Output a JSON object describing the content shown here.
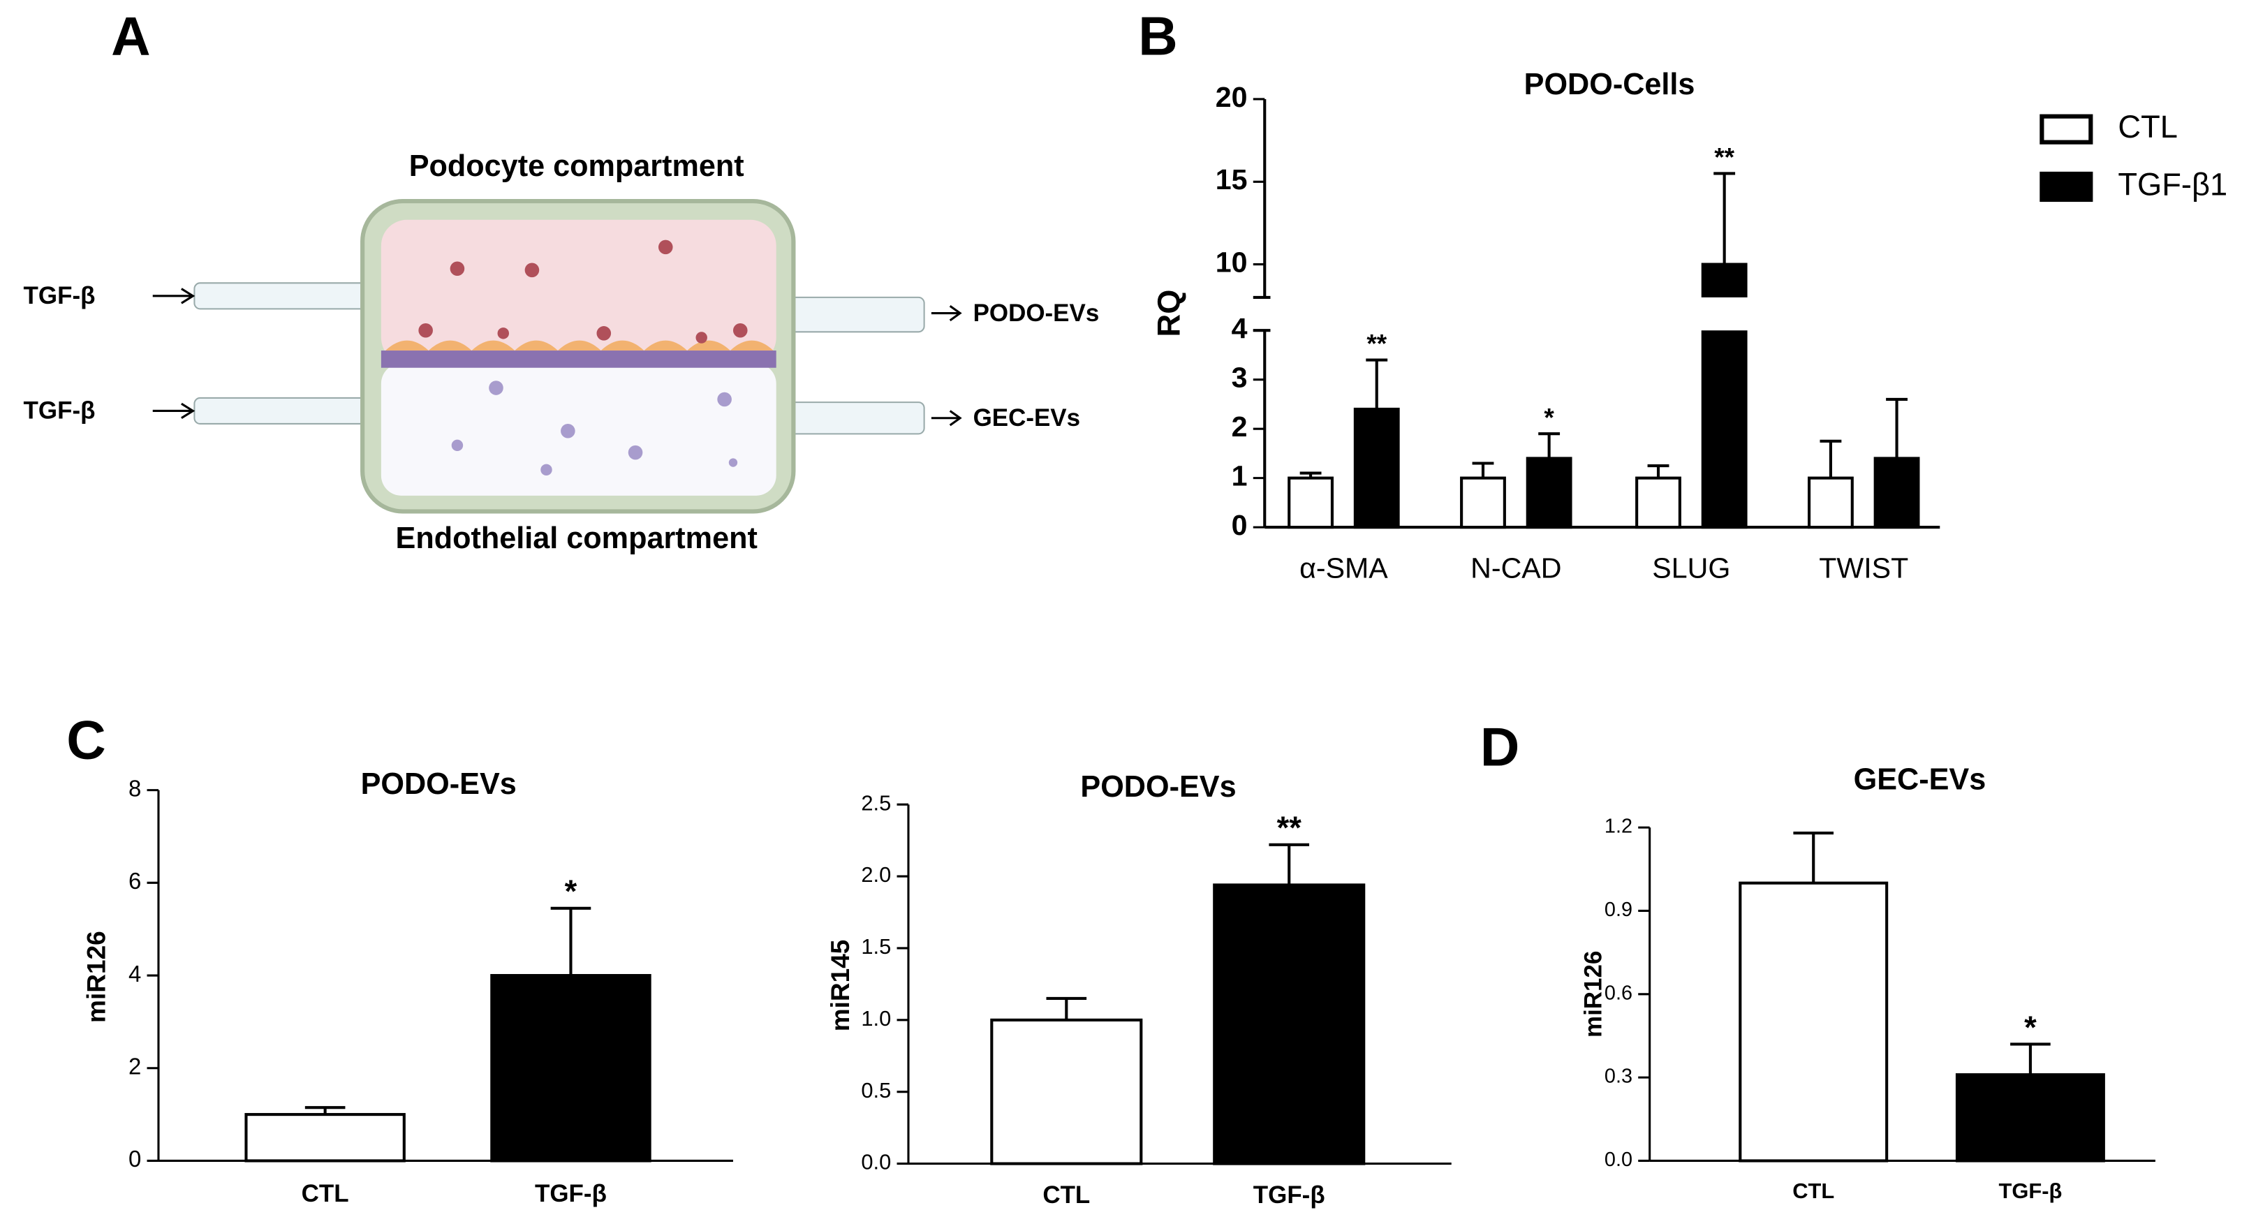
{
  "panel_labels": [
    "A",
    "B",
    "C",
    "D"
  ],
  "diagram": {
    "top_label": "Podocyte compartment",
    "bottom_label": "Endothelial compartment",
    "inputs": [
      "TGF-β",
      "TGF-β"
    ],
    "outputs": [
      "PODO-EVs",
      "GEC-EVs"
    ]
  },
  "chart_data": [
    {
      "type": "bar",
      "title": "PODO-Cells",
      "y_label": "RQ",
      "categories": [
        "α-SMA",
        "N-CAD",
        "SLUG",
        "TWIST"
      ],
      "series": [
        {
          "name": "CTL",
          "color": "#ffffff",
          "values": [
            1,
            1,
            1,
            1
          ],
          "errors": [
            0.1,
            0.3,
            0.25,
            0.75
          ],
          "annotations": [
            null,
            null,
            null,
            null
          ]
        },
        {
          "name": "TGF-β1",
          "color": "#000000",
          "values": [
            2.4,
            1.4,
            10,
            1.4
          ],
          "errors": [
            1.0,
            0.5,
            5.5,
            1.2
          ],
          "annotations": [
            "**",
            "*",
            "**",
            null
          ]
        }
      ],
      "ylim": [
        0,
        20
      ],
      "y_break": [
        4,
        8
      ],
      "yticks": [
        0,
        1,
        2,
        3,
        4,
        10,
        15,
        20
      ],
      "legend": "right"
    },
    {
      "type": "bar",
      "title": "PODO-EVs",
      "y_label": "miR126",
      "categories": [
        "CTL",
        "TGF-β"
      ],
      "values": [
        1,
        4
      ],
      "errors": [
        0.15,
        1.45
      ],
      "colors": [
        "#ffffff",
        "#000000"
      ],
      "annotations": [
        null,
        "*"
      ],
      "ylim": [
        0,
        8
      ],
      "yticks": [
        0,
        2,
        4,
        6,
        8
      ]
    },
    {
      "type": "bar",
      "title": "PODO-EVs",
      "y_label": "miR145",
      "categories": [
        "CTL",
        "TGF-β"
      ],
      "values": [
        1.0,
        1.94
      ],
      "errors": [
        0.15,
        0.28
      ],
      "colors": [
        "#ffffff",
        "#000000"
      ],
      "annotations": [
        null,
        "**"
      ],
      "ylim": [
        0,
        2.5
      ],
      "yticks": [
        {
          "value": 0,
          "label": "0.0"
        },
        {
          "value": 0.5,
          "label": "0.5"
        },
        {
          "value": 1,
          "label": "1.0"
        },
        {
          "value": 1.5,
          "label": "1.5"
        },
        {
          "value": 2,
          "label": "2.0"
        },
        {
          "value": 2.5,
          "label": "2.5"
        }
      ]
    },
    {
      "type": "bar",
      "title": "GEC-EVs",
      "y_label": "miR126",
      "categories": [
        "CTL",
        "TGF-β"
      ],
      "values": [
        1.0,
        0.31
      ],
      "errors": [
        0.18,
        0.11
      ],
      "colors": [
        "#ffffff",
        "#000000"
      ],
      "annotations": [
        null,
        "*"
      ],
      "ylim": [
        0,
        1.2
      ],
      "yticks": [
        {
          "value": 0,
          "label": "0.0"
        },
        {
          "value": 0.3,
          "label": "0.3"
        },
        {
          "value": 0.6,
          "label": "0.6"
        },
        {
          "value": 0.9,
          "label": "0.9"
        },
        {
          "value": 1.2,
          "label": "1.2"
        }
      ]
    }
  ]
}
